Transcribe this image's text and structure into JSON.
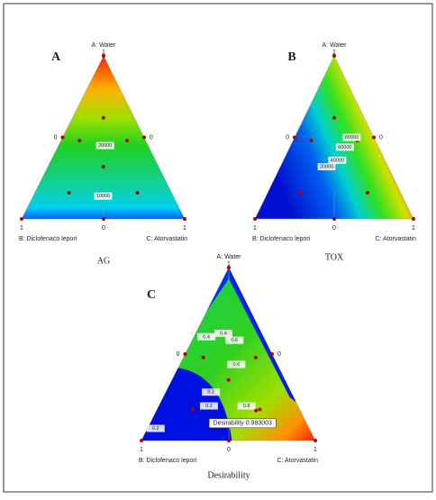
{
  "panels": [
    {
      "letter": "A",
      "caption": "AG",
      "vertex_labels": {
        "top": "A: Water",
        "left": "B: Diclofenaco lepori",
        "right": "C: Atorvastatin"
      },
      "ticks": {
        "top": "1",
        "left_side": "0",
        "right_side": "0",
        "bottom_left": "1",
        "bottom_mid": "0",
        "bottom_right": "1"
      },
      "contour_labels": [
        "20000",
        "10000"
      ]
    },
    {
      "letter": "B",
      "caption": "TOX",
      "vertex_labels": {
        "top": "A: Water",
        "left": "B: Diclofenaco lepori",
        "right": "C: Atorvastatin"
      },
      "ticks": {
        "top": "1",
        "left_side": "0",
        "right_side": "0",
        "bottom_left": "1",
        "bottom_mid": "0",
        "bottom_right": "1"
      },
      "contour_labels": [
        "80000",
        "60000",
        "40000",
        "20000"
      ]
    },
    {
      "letter": "C",
      "caption": "Desirability",
      "vertex_labels": {
        "top": "A: Water",
        "left": "B: Diclofenaco lepori",
        "right": "C: Atorvastatin"
      },
      "ticks": {
        "top": "1",
        "left_side": "0",
        "right_side": "0",
        "bottom_left": "1",
        "bottom_mid": "0",
        "bottom_right": "1"
      },
      "contour_labels": [
        "0.4",
        "0.4",
        "0.6",
        "0.6",
        "0.2",
        "0.2",
        "0.8",
        "0.2"
      ],
      "annotation": "Desirability 0.983003"
    }
  ]
}
